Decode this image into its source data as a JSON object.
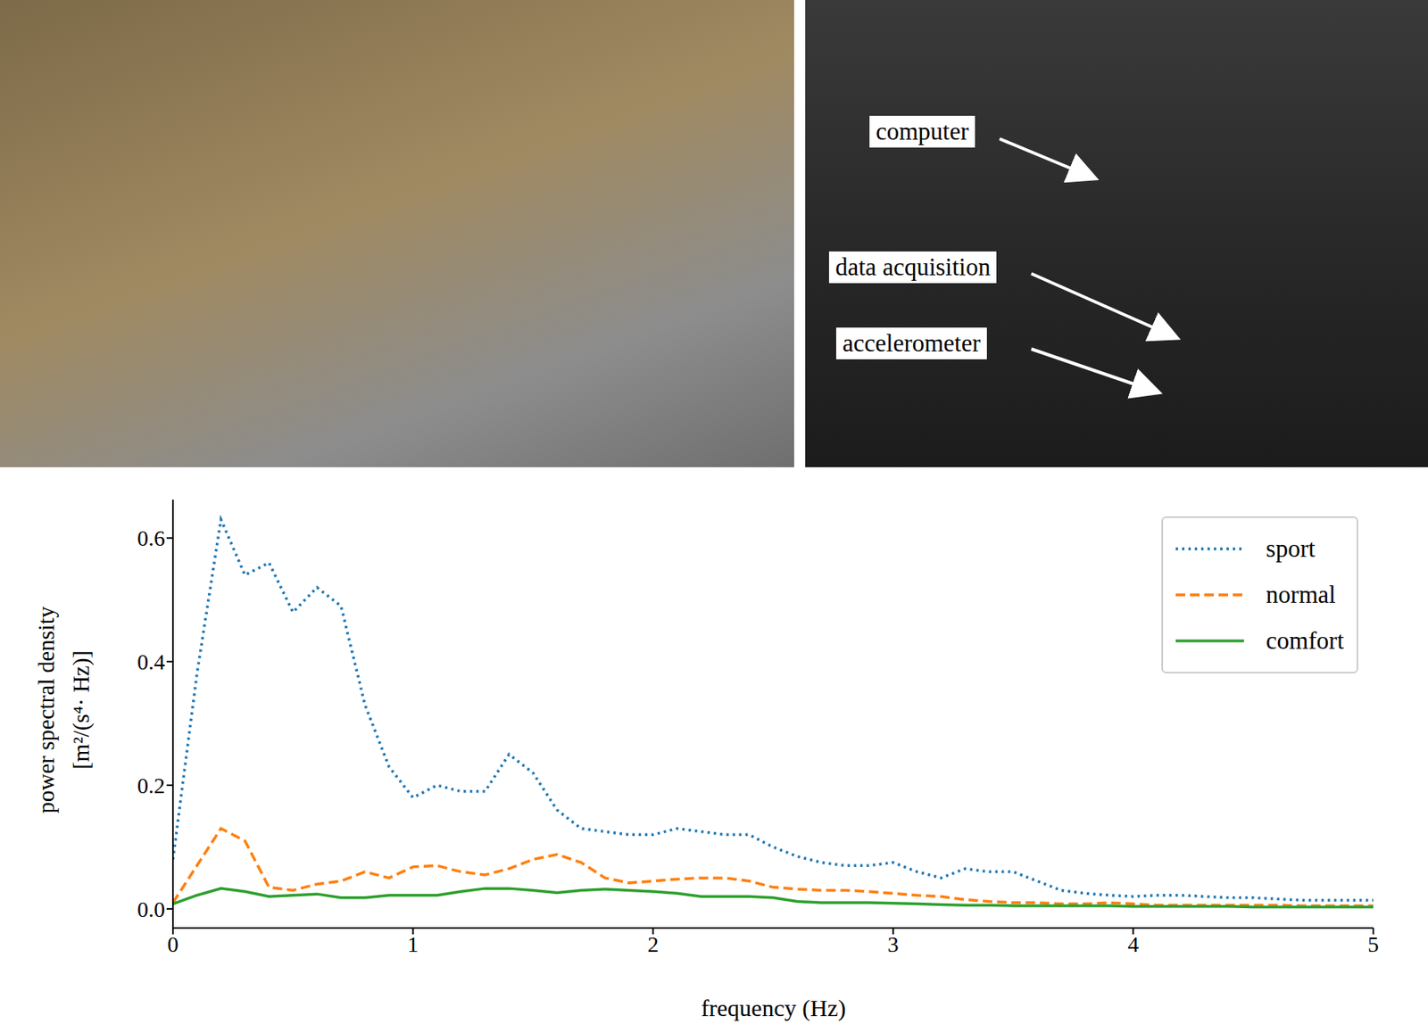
{
  "photo_labels": [
    "computer",
    "data acquisition",
    "accelerometer"
  ],
  "chart_data": {
    "type": "line",
    "x_label": "frequency (Hz)",
    "y_label": [
      "power spectral density",
      "[m²/(s⁴· Hz)]"
    ],
    "xlim": [
      0,
      5
    ],
    "xticks": [
      0,
      1,
      2,
      3,
      4,
      5
    ],
    "ylim": [
      -0.031,
      0.662
    ],
    "yticks": [
      {
        "value": 0,
        "label": "0.0"
      },
      0.2,
      0.4,
      0.6
    ],
    "legend": "upper right",
    "grid": false,
    "x": [
      0,
      0.1,
      0.2,
      0.3,
      0.4,
      0.5,
      0.6,
      0.7,
      0.8,
      0.9,
      1.0,
      1.1,
      1.2,
      1.3,
      1.4,
      1.5,
      1.6,
      1.7,
      1.8,
      1.9,
      2.0,
      2.1,
      2.2,
      2.3,
      2.4,
      2.5,
      2.6,
      2.7,
      2.8,
      2.9,
      3.0,
      3.1,
      3.2,
      3.3,
      3.4,
      3.5,
      3.6,
      3.7,
      3.8,
      3.9,
      4.0,
      4.1,
      4.2,
      4.3,
      4.4,
      4.5,
      4.6,
      4.7,
      4.8,
      4.9,
      5.0
    ],
    "series": [
      {
        "name": "sport",
        "color": "#1f77b4",
        "line_style": "dotted",
        "values": [
          0.08,
          0.38,
          0.63,
          0.54,
          0.56,
          0.48,
          0.52,
          0.49,
          0.33,
          0.23,
          0.18,
          0.2,
          0.19,
          0.19,
          0.25,
          0.22,
          0.16,
          0.13,
          0.125,
          0.12,
          0.12,
          0.13,
          0.125,
          0.12,
          0.12,
          0.1,
          0.085,
          0.075,
          0.07,
          0.07,
          0.075,
          0.06,
          0.05,
          0.065,
          0.06,
          0.06,
          0.045,
          0.03,
          0.025,
          0.022,
          0.02,
          0.022,
          0.022,
          0.02,
          0.018,
          0.018,
          0.016,
          0.014,
          0.014,
          0.014,
          0.014
        ]
      },
      {
        "name": "normal",
        "color": "#ff7f0e",
        "line_style": "dashed",
        "values": [
          0.01,
          0.07,
          0.13,
          0.11,
          0.035,
          0.03,
          0.04,
          0.045,
          0.06,
          0.05,
          0.068,
          0.07,
          0.06,
          0.055,
          0.065,
          0.08,
          0.088,
          0.075,
          0.05,
          0.042,
          0.045,
          0.048,
          0.05,
          0.05,
          0.045,
          0.035,
          0.032,
          0.03,
          0.03,
          0.028,
          0.025,
          0.022,
          0.02,
          0.015,
          0.012,
          0.01,
          0.01,
          0.008,
          0.008,
          0.01,
          0.008,
          0.006,
          0.006,
          0.006,
          0.006,
          0.006,
          0.006,
          0.005,
          0.005,
          0.005,
          0.005
        ]
      },
      {
        "name": "comfort",
        "color": "#2ca02c",
        "line_style": "solid",
        "values": [
          0.008,
          0.022,
          0.033,
          0.028,
          0.02,
          0.022,
          0.024,
          0.018,
          0.018,
          0.022,
          0.022,
          0.022,
          0.028,
          0.033,
          0.033,
          0.03,
          0.026,
          0.03,
          0.032,
          0.03,
          0.028,
          0.025,
          0.02,
          0.02,
          0.02,
          0.018,
          0.012,
          0.01,
          0.01,
          0.01,
          0.009,
          0.008,
          0.007,
          0.006,
          0.006,
          0.005,
          0.005,
          0.005,
          0.005,
          0.005,
          0.004,
          0.004,
          0.004,
          0.004,
          0.004,
          0.003,
          0.003,
          0.003,
          0.003,
          0.003,
          0.003
        ]
      }
    ]
  }
}
